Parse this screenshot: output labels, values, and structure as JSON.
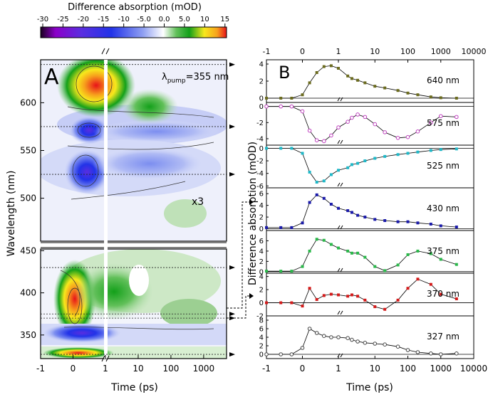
{
  "colorbar": {
    "title": "Difference absorption (mOD)",
    "ticks": [
      "-30",
      "-25",
      "-20",
      "-15",
      "-10",
      "-5.0",
      "0.0",
      "5.0",
      "10",
      "15"
    ],
    "colors": [
      "#1a0020",
      "#8b00c8",
      "#5a2ee0",
      "#2233e8",
      "#3d6cf0",
      "#8f9ff2",
      "#ffffff",
      "#62c05a",
      "#13a01a",
      "#f7e81c",
      "#f7a01c",
      "#e8121a"
    ]
  },
  "panelA": {
    "label": "A",
    "ylabel": "Wavelength (nm)",
    "xlabel": "Time (ps)",
    "xticks": [
      "-1",
      "0",
      "1",
      "10",
      "100",
      "1000"
    ],
    "yticks_top": [
      "600",
      "550",
      "500"
    ],
    "yticks_top_values": [
      600,
      550,
      500
    ],
    "yticks_bottom": [
      "450",
      "400",
      "350"
    ],
    "yticks_bottom_values": [
      450,
      400,
      350
    ],
    "ylim_top": [
      455,
      645
    ],
    "ylim_bottom": [
      322,
      452
    ],
    "pump_prefix": "λ",
    "pump_sub": "pump",
    "pump_value": "=355 nm",
    "scale_note": "x3",
    "features": [
      {
        "name": "positive-band-615",
        "sign": "pos",
        "t_center": 0.3,
        "wavelength": 615,
        "peak_mOD": 15
      },
      {
        "name": "bleach-575",
        "sign": "neg",
        "t_center": 0.2,
        "wavelength": 568,
        "peak_mOD": -20
      },
      {
        "name": "bleach-525",
        "sign": "neg",
        "t_center": 0.2,
        "wavelength": 525,
        "peak_mOD": -20
      },
      {
        "name": "positive-band-390",
        "sign": "pos",
        "t_center": 0.2,
        "wavelength": 390,
        "peak_mOD": 15
      },
      {
        "name": "bleach-340",
        "sign": "neg",
        "t_center": 0.2,
        "wavelength": 340,
        "peak_mOD": -25
      },
      {
        "name": "positive-band-330",
        "sign": "pos",
        "t_center": 0.2,
        "wavelength": 328,
        "peak_mOD": 12
      }
    ],
    "marked_wavelengths": [
      640,
      575,
      525,
      430,
      375,
      370,
      327
    ]
  },
  "panelB": {
    "label": "B",
    "xlabel": "Time (ps)",
    "ylabel": "Difference absorption (mOD)",
    "xticks": [
      "-1",
      "0",
      "1",
      "10",
      "100",
      "1000",
      "10000"
    ],
    "chart_data": [
      {
        "type": "scatter",
        "label": "640 nm",
        "color": "#6b6b1e",
        "marker": "filled",
        "ylim": [
          -0.5,
          4.5
        ],
        "yticks": [
          0,
          2,
          4
        ],
        "t": [
          -1,
          -0.6,
          -0.3,
          0,
          0.2,
          0.4,
          0.6,
          0.8,
          1,
          1.5,
          2,
          3,
          5,
          10,
          20,
          50,
          100,
          200,
          500,
          1000,
          3000
        ],
        "y": [
          0,
          0,
          0,
          0.4,
          1.8,
          3,
          3.7,
          3.8,
          3.5,
          2.6,
          2.3,
          2.1,
          1.8,
          1.4,
          1.2,
          0.9,
          0.6,
          0.4,
          0.15,
          0.05,
          0
        ]
      },
      {
        "type": "scatter",
        "label": "575 nm",
        "color": "#c040c0",
        "marker": "open",
        "ylim": [
          -4.8,
          0.5
        ],
        "yticks": [
          0,
          -2,
          -4
        ],
        "t": [
          -1,
          -0.6,
          -0.3,
          0,
          0.2,
          0.4,
          0.6,
          0.8,
          1,
          1.5,
          2,
          3,
          5,
          10,
          20,
          50,
          100,
          200,
          500,
          1000,
          3000
        ],
        "y": [
          0,
          0,
          0,
          -0.6,
          -3,
          -4.2,
          -4.3,
          -3.6,
          -2.6,
          -1.9,
          -1.4,
          -1,
          -1.3,
          -2.2,
          -3.2,
          -3.9,
          -3.8,
          -3.1,
          -2,
          -1.2,
          -1.3
        ]
      },
      {
        "type": "scatter",
        "label": "525 nm",
        "color": "#1fb8c8",
        "marker": "filled",
        "ylim": [
          -6.3,
          0.5
        ],
        "yticks": [
          0,
          -2,
          -4,
          -6
        ],
        "t": [
          -1,
          -0.6,
          -0.3,
          0,
          0.2,
          0.4,
          0.6,
          0.8,
          1,
          1.5,
          2,
          3,
          5,
          10,
          20,
          50,
          100,
          200,
          500,
          1000,
          3000
        ],
        "y": [
          0,
          0,
          0,
          -0.8,
          -3.8,
          -5.4,
          -5.2,
          -4.2,
          -3.5,
          -3.1,
          -2.6,
          -2.4,
          -2,
          -1.6,
          -1.3,
          -1,
          -0.8,
          -0.6,
          -0.35,
          -0.2,
          -0.1
        ]
      },
      {
        "type": "scatter",
        "label": "430 nm",
        "color": "#1a1aaa",
        "marker": "filled",
        "ylim": [
          -0.3,
          7
        ],
        "yticks": [
          0,
          2,
          4,
          6
        ],
        "t": [
          -1,
          -0.6,
          -0.3,
          0,
          0.2,
          0.4,
          0.6,
          0.8,
          1,
          1.5,
          2,
          3,
          5,
          10,
          20,
          50,
          100,
          200,
          500,
          1000,
          3000
        ],
        "y": [
          0.2,
          0.2,
          0.2,
          1,
          4.5,
          5.8,
          5.2,
          4.2,
          3.5,
          3.1,
          2.8,
          2.3,
          2,
          1.6,
          1.4,
          1.2,
          1.2,
          1,
          0.8,
          0.5,
          0.3
        ]
      },
      {
        "type": "scatter",
        "label": "375 nm",
        "color": "#2ab84a",
        "marker": "filled",
        "ylim": [
          -0.3,
          8
        ],
        "yticks": [
          0,
          2,
          4,
          6
        ],
        "t": [
          -1,
          -0.6,
          -0.3,
          0,
          0.2,
          0.4,
          0.6,
          0.8,
          1,
          1.5,
          2,
          3,
          5,
          10,
          20,
          50,
          100,
          200,
          500,
          1000,
          3000
        ],
        "y": [
          0.1,
          0.1,
          0.1,
          1,
          4,
          6.3,
          6.1,
          5.3,
          4.6,
          4,
          3.6,
          3.6,
          2.8,
          1,
          0.2,
          1.3,
          3.3,
          4,
          3.5,
          2.4,
          1.4
        ]
      },
      {
        "type": "scatter",
        "label": "370 nm",
        "color": "#d41a1a",
        "marker": "filled",
        "ylim": [
          -2,
          4.5
        ],
        "yticks": [
          4,
          2,
          0,
          -2
        ],
        "t": [
          -1,
          -0.6,
          -0.3,
          0,
          0.2,
          0.4,
          0.6,
          0.8,
          1,
          1.5,
          2,
          3,
          5,
          10,
          20,
          50,
          100,
          200,
          500,
          1000,
          3000
        ],
        "y": [
          0,
          0,
          0,
          -0.5,
          2.2,
          0.5,
          1.1,
          1.3,
          1.2,
          1,
          1.2,
          1,
          0.4,
          -0.6,
          -1,
          0.4,
          2.2,
          3.6,
          2.8,
          1.3,
          0.6
        ]
      },
      {
        "type": "scatter",
        "label": "327 nm",
        "color": "#444444",
        "marker": "open",
        "ylim": [
          -1,
          9
        ],
        "yticks": [
          8,
          6,
          4,
          2,
          0
        ],
        "t": [
          -1,
          -0.6,
          -0.3,
          0,
          0.2,
          0.4,
          0.6,
          0.8,
          1,
          1.5,
          2,
          3,
          5,
          10,
          20,
          50,
          100,
          200,
          500,
          1000,
          3000
        ],
        "y": [
          0,
          0,
          0,
          1.5,
          6,
          5,
          4.3,
          4,
          4,
          3.8,
          3.4,
          3,
          2.7,
          2.5,
          2.3,
          1.8,
          1,
          0.5,
          0.2,
          0,
          0.2
        ]
      }
    ]
  }
}
